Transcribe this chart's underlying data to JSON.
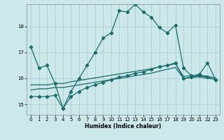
{
  "title": "",
  "xlabel": "Humidex (Indice chaleur)",
  "background_color": "#cce8ea",
  "grid_color": "#aacdd0",
  "line_color": "#1a6b6b",
  "xlim": [
    -0.5,
    23.5
  ],
  "ylim": [
    14.6,
    18.85
  ],
  "yticks": [
    15,
    16,
    17,
    18
  ],
  "xticks": [
    0,
    1,
    2,
    3,
    4,
    5,
    6,
    7,
    8,
    9,
    10,
    11,
    12,
    13,
    14,
    15,
    16,
    17,
    18,
    19,
    20,
    21,
    22,
    23
  ],
  "main_line": [
    17.2,
    16.4,
    16.5,
    15.8,
    14.85,
    15.5,
    16.0,
    16.5,
    17.0,
    17.55,
    17.75,
    18.6,
    18.55,
    18.85,
    18.55,
    18.35,
    17.95,
    17.75,
    18.05,
    16.4,
    16.1,
    16.15,
    16.6,
    15.95
  ],
  "line2": [
    15.3,
    15.3,
    15.3,
    15.35,
    14.85,
    15.3,
    15.5,
    15.65,
    15.75,
    15.85,
    15.95,
    16.05,
    16.1,
    16.2,
    16.25,
    16.35,
    16.45,
    16.5,
    16.6,
    16.0,
    16.05,
    16.1,
    16.05,
    15.95
  ],
  "line3": [
    15.55,
    15.6,
    15.6,
    15.65,
    15.65,
    15.7,
    15.75,
    15.8,
    15.85,
    15.9,
    15.95,
    16.0,
    16.05,
    16.1,
    16.15,
    16.2,
    16.28,
    16.35,
    16.42,
    16.0,
    16.03,
    16.06,
    16.0,
    15.97
  ],
  "line4": [
    15.75,
    15.75,
    15.75,
    15.8,
    15.8,
    15.87,
    15.92,
    15.97,
    16.02,
    16.07,
    16.12,
    16.17,
    16.22,
    16.27,
    16.32,
    16.37,
    16.44,
    16.5,
    16.56,
    16.08,
    16.1,
    16.13,
    16.08,
    16.02
  ]
}
